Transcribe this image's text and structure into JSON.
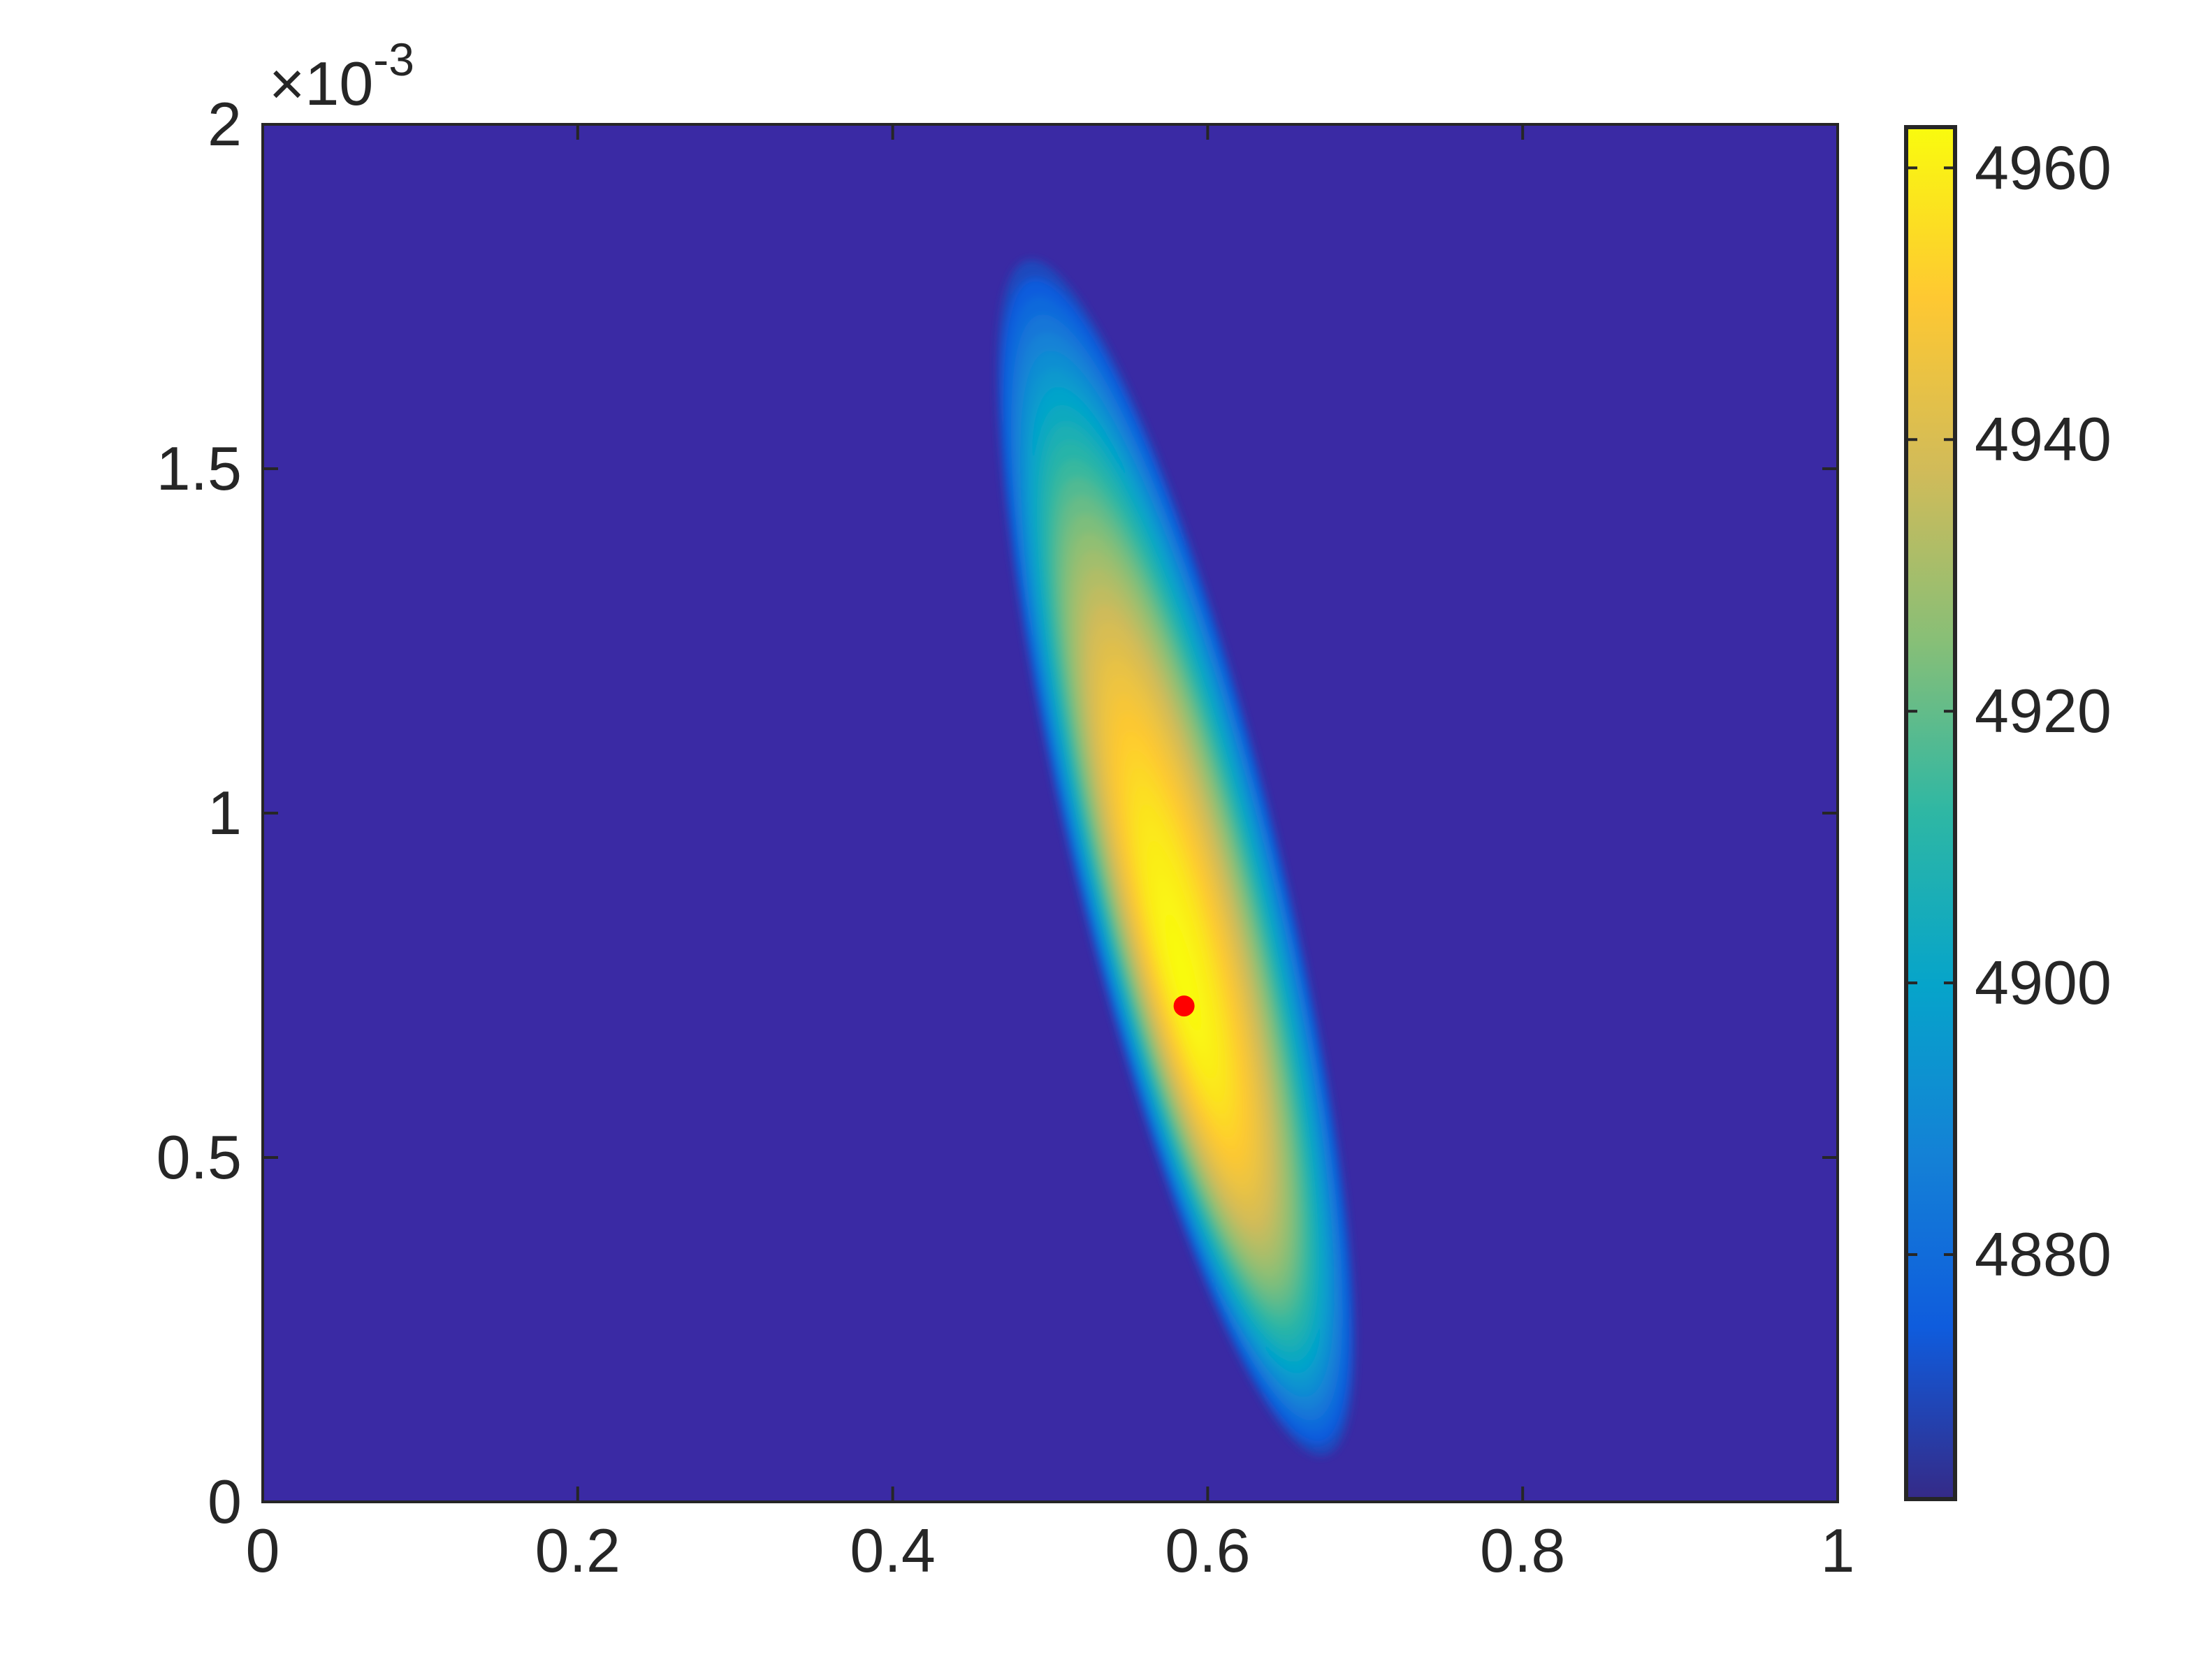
{
  "chart_data": {
    "type": "heatmap",
    "title": "",
    "xlabel": "",
    "ylabel": "",
    "xlim": [
      0,
      1
    ],
    "ylim": [
      0,
      0.002
    ],
    "x_ticks": [
      0,
      0.2,
      0.4,
      0.6,
      0.8,
      1
    ],
    "x_tick_labels": [
      "0",
      "0.2",
      "0.4",
      "0.6",
      "0.8",
      "1"
    ],
    "y_ticks": [
      0,
      0.0005,
      0.001,
      0.0015,
      0.002
    ],
    "y_tick_labels": [
      "0",
      "0.5",
      "1",
      "1.5",
      "2"
    ],
    "y_exponent": {
      "prefix": "×10",
      "power": "-3"
    },
    "field": {
      "center_x": 0.585,
      "center_y": 0.00093,
      "floor_value": 4862,
      "peak_value": 4963,
      "peak_x": 0.585,
      "peak_y": 0.00075,
      "cutoff_value": 4870,
      "outer_boundary": {
        "left_x": 0.455,
        "right_x": 0.705,
        "bottom_y": 5e-05,
        "top_y": 0.00182
      }
    },
    "marker": {
      "x": 0.585,
      "y": 0.00072,
      "color": "#ff0000"
    },
    "colorbar": {
      "min": 4862,
      "max": 4963,
      "ticks": [
        4880,
        4900,
        4920,
        4940,
        4960
      ],
      "tick_labels": [
        "4880",
        "4900",
        "4920",
        "4940",
        "4960"
      ],
      "colormap": "parula",
      "stops": [
        "#352a87",
        "#0f5cdd",
        "#1481d6",
        "#06a4ca",
        "#2eb7a4",
        "#87bf77",
        "#d1bb59",
        "#fec832",
        "#f9fb0e"
      ]
    },
    "background_color": "#3a2aa4",
    "grid": false,
    "legend": "none"
  }
}
